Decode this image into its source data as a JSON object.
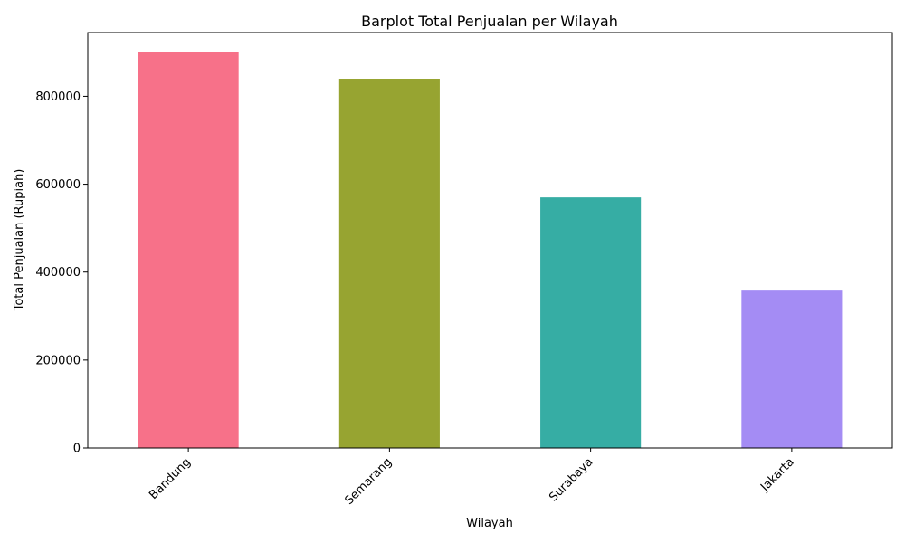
{
  "chart_data": {
    "type": "bar",
    "title": "Barplot Total Penjualan per Wilayah",
    "xlabel": "Wilayah",
    "ylabel": "Total Penjualan (Rupiah)",
    "categories": [
      "Bandung",
      "Semarang",
      "Surabaya",
      "Jakarta"
    ],
    "values": [
      900000,
      840000,
      570000,
      360000
    ],
    "colors": [
      "#f77189",
      "#97a431",
      "#36ada4",
      "#a48cf4"
    ],
    "ylim": [
      0,
      945000
    ],
    "yticks": [
      0,
      200000,
      400000,
      600000,
      800000
    ],
    "ytick_labels": [
      "0",
      "200000",
      "400000",
      "600000",
      "800000"
    ],
    "xtick_rotation_deg": 45,
    "grid": false,
    "legend": "none"
  }
}
